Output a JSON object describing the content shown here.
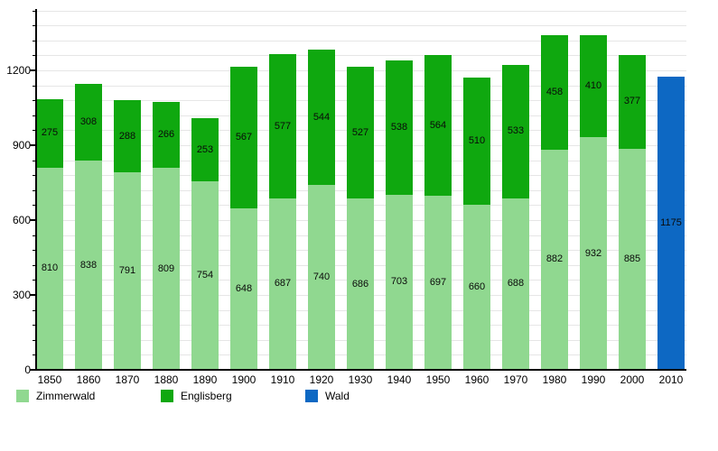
{
  "chart_data": {
    "type": "bar",
    "stacked": true,
    "title": "",
    "xlabel": "",
    "ylabel": "",
    "grid": true,
    "legend_position": "bottom",
    "ylim": [
      0,
      1440
    ],
    "yticks": [
      0,
      300,
      600,
      900,
      1200
    ],
    "minor_grid_step": 60,
    "categories": [
      "1850",
      "1860",
      "1870",
      "1880",
      "1890",
      "1900",
      "1910",
      "1920",
      "1930",
      "1940",
      "1950",
      "1960",
      "1970",
      "1980",
      "1990",
      "2000",
      "2010"
    ],
    "series": [
      {
        "name": "Zimmerwald",
        "color": "#90d890",
        "values": [
          810,
          838,
          791,
          809,
          754,
          648,
          687,
          740,
          686,
          703,
          697,
          660,
          688,
          882,
          932,
          885,
          null
        ]
      },
      {
        "name": "Englisberg",
        "color": "#0fa80f",
        "values": [
          275,
          308,
          288,
          266,
          253,
          567,
          577,
          544,
          527,
          538,
          564,
          510,
          533,
          458,
          410,
          377,
          null
        ]
      },
      {
        "name": "Wald",
        "color": "#0d68c3",
        "values": [
          null,
          null,
          null,
          null,
          null,
          null,
          null,
          null,
          null,
          null,
          null,
          null,
          null,
          null,
          null,
          null,
          1175
        ]
      }
    ]
  },
  "colors": {
    "gridline": "#e6e6e6",
    "axis": "#000000",
    "label": "#0a0a0a"
  }
}
